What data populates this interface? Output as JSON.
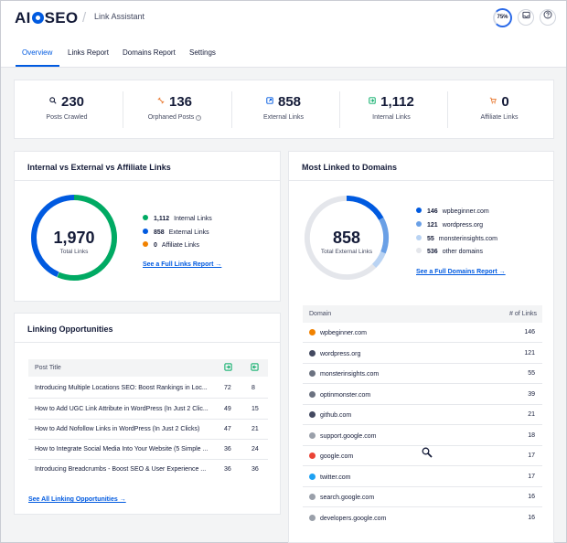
{
  "header": {
    "logo": "AIOSEO",
    "app_title": "Link Assistant",
    "score": "75%",
    "icons": [
      "inbox-icon",
      "help-icon"
    ]
  },
  "tabs": [
    "Overview",
    "Links Report",
    "Domains Report",
    "Settings"
  ],
  "stats": [
    {
      "value": "230",
      "label": "Posts Crawled",
      "icon": "search-icon",
      "color": "#141b38"
    },
    {
      "value": "136",
      "label": "Orphaned Posts",
      "icon": "orphan-link-icon",
      "color": "#e8772e"
    },
    {
      "value": "858",
      "label": "External Links",
      "icon": "external-link-icon",
      "color": "#005ae0"
    },
    {
      "value": "1,112",
      "label": "Internal Links",
      "icon": "internal-link-icon",
      "color": "#00aa63"
    },
    {
      "value": "0",
      "label": "Affiliate Links",
      "icon": "cart-icon",
      "color": "#e8772e"
    }
  ],
  "links_card": {
    "title": "Internal vs External vs Affiliate Links",
    "total": "1,970",
    "total_label": "Total Links",
    "legend": [
      {
        "value": "1,112",
        "label": "Internal Links",
        "color": "#00aa63"
      },
      {
        "value": "858",
        "label": "External Links",
        "color": "#005ae0"
      },
      {
        "value": "0",
        "label": "Affiliate Links",
        "color": "#f18200"
      }
    ],
    "link": "See a Full Links Report →"
  },
  "domains_card": {
    "title": "Most Linked to Domains",
    "total": "858",
    "total_label": "Total External Links",
    "legend": [
      {
        "value": "146",
        "label": "wpbeginner.com",
        "color": "#005ae0"
      },
      {
        "value": "121",
        "label": "wordpress.org",
        "color": "#6aa0e6"
      },
      {
        "value": "55",
        "label": "monsterinsights.com",
        "color": "#b9d3f3"
      },
      {
        "value": "536",
        "label": "other domains",
        "color": "#e4e6eb"
      }
    ],
    "link": "See a Full Domains Report →",
    "col_domain": "Domain",
    "col_links": "# of Links",
    "rows": [
      {
        "domain": "wpbeginner.com",
        "links": "146",
        "icon_color": "#f18200"
      },
      {
        "domain": "wordpress.org",
        "links": "121",
        "icon_color": "#434960"
      },
      {
        "domain": "monsterinsights.com",
        "links": "55",
        "icon_color": "#6b7280"
      },
      {
        "domain": "optinmonster.com",
        "links": "39",
        "icon_color": "#6b7280"
      },
      {
        "domain": "github.com",
        "links": "21",
        "icon_color": "#434960"
      },
      {
        "domain": "support.google.com",
        "links": "18",
        "icon_color": "#9aa0aa"
      },
      {
        "domain": "google.com",
        "links": "17",
        "icon_color": "#ea4335"
      },
      {
        "domain": "twitter.com",
        "links": "17",
        "icon_color": "#1da1f2"
      },
      {
        "domain": "search.google.com",
        "links": "16",
        "icon_color": "#9aa0aa"
      },
      {
        "domain": "developers.google.com",
        "links": "16",
        "icon_color": "#9aa0aa"
      }
    ]
  },
  "opps_card": {
    "title": "Linking Opportunities",
    "col_post": "Post Title",
    "rows": [
      {
        "title": "Introducing Multiple Locations SEO: Boost Rankings in Loc...",
        "a": "72",
        "b": "8"
      },
      {
        "title": "How to Add UGC Link Attribute in WordPress (In Just 2 Clic...",
        "a": "49",
        "b": "15"
      },
      {
        "title": "How to Add Nofollow Links in WordPress (In Just 2 Clicks)",
        "a": "47",
        "b": "21"
      },
      {
        "title": "How to Integrate Social Media Into Your Website (5 Simple ...",
        "a": "36",
        "b": "24"
      },
      {
        "title": "Introducing Breadcrumbs - Boost SEO & User Experience ...",
        "a": "36",
        "b": "36"
      }
    ],
    "link": "See All Linking Opportunities →"
  }
}
